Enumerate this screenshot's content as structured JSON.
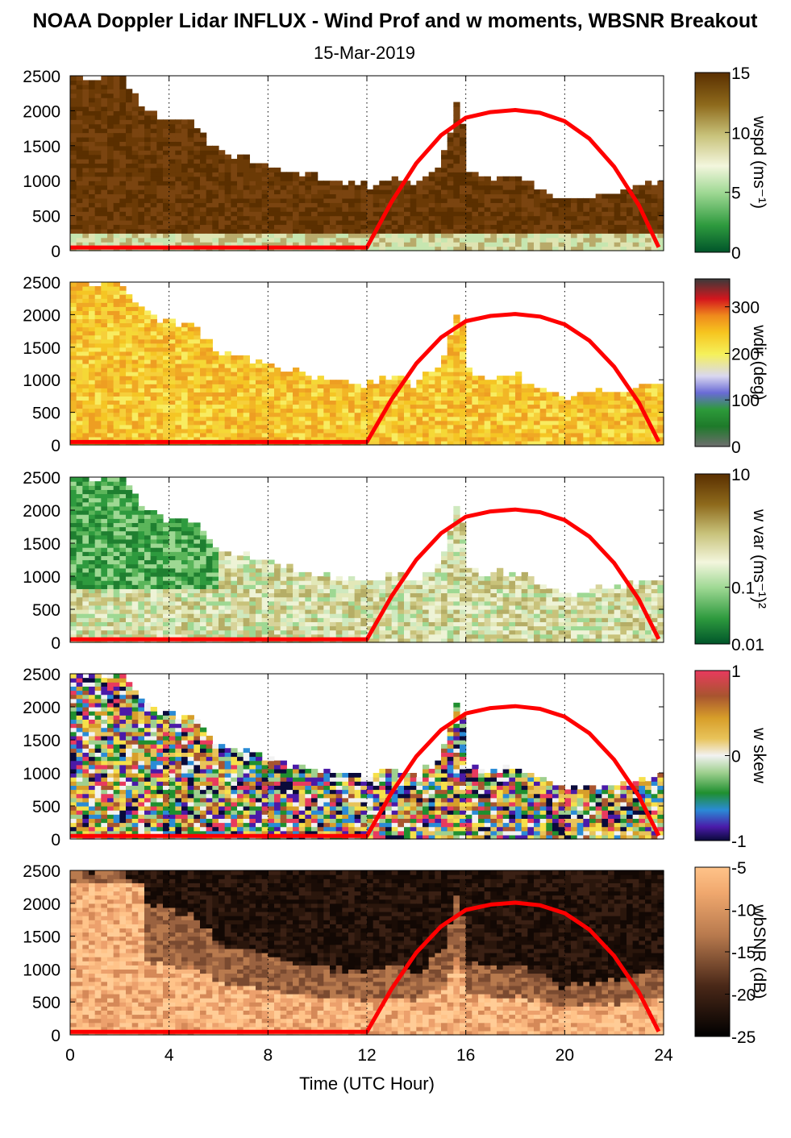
{
  "title": "NOAA Doppler Lidar INFLUX - Wind Prof and w moments, WBSNR Breakout",
  "subtitle": "15-Mar-2019",
  "xlabel": "Time (UTC Hour)",
  "colors": {
    "sun_curve": "#ff0000",
    "background": "#ffffff"
  },
  "chart_data": [
    {
      "type": "heatmap",
      "quantity": "wspd",
      "colorbar_label": "wspd (ms⁻¹)",
      "colorbar_ticks": [
        "15",
        "10",
        "5",
        "0"
      ],
      "clim": [
        0,
        15
      ],
      "xlim": [
        0,
        24
      ],
      "ylim": [
        0,
        2500
      ],
      "x_ticks": [
        "0",
        "4",
        "8",
        "12",
        "16",
        "20",
        "24"
      ],
      "y_ticks": [
        "0",
        "500",
        "1000",
        "1500",
        "2000",
        "2500"
      ],
      "grid": "vertical dotted at 4,8,12,16,20,24",
      "data_top_height_m": [
        [
          0,
          2500
        ],
        [
          1,
          2450
        ],
        [
          2,
          2500
        ],
        [
          3,
          2000
        ],
        [
          4,
          1850
        ],
        [
          5,
          1800
        ],
        [
          6,
          1400
        ],
        [
          8,
          1200
        ],
        [
          10,
          1000
        ],
        [
          12,
          900
        ],
        [
          13,
          1000
        ],
        [
          14,
          900
        ],
        [
          15,
          1200
        ],
        [
          15.8,
          2250
        ],
        [
          16,
          1100
        ],
        [
          17,
          1000
        ],
        [
          18,
          1050
        ],
        [
          20,
          700
        ],
        [
          22,
          800
        ],
        [
          23.8,
          950
        ]
      ]
    },
    {
      "type": "heatmap",
      "quantity": "wdir",
      "colorbar_label": "wdir (deg)",
      "colorbar_ticks": [
        "300",
        "200",
        "100",
        "0"
      ],
      "clim": [
        0,
        360
      ],
      "xlim": [
        0,
        24
      ],
      "ylim": [
        0,
        2500
      ],
      "x_ticks": [
        "0",
        "4",
        "8",
        "12",
        "16",
        "20",
        "24"
      ],
      "y_ticks": [
        "0",
        "500",
        "1000",
        "1500",
        "2000",
        "2500"
      ]
    },
    {
      "type": "heatmap",
      "quantity": "w var",
      "colorbar_label": "w var (ms⁻¹)²",
      "colorbar_ticks": [
        "10",
        "0.1",
        "0.01"
      ],
      "clim": [
        0.01,
        10
      ],
      "scale": "log",
      "xlim": [
        0,
        24
      ],
      "ylim": [
        0,
        2500
      ],
      "x_ticks": [
        "0",
        "4",
        "8",
        "12",
        "16",
        "20",
        "24"
      ],
      "y_ticks": [
        "0",
        "500",
        "1000",
        "1500",
        "2000",
        "2500"
      ]
    },
    {
      "type": "heatmap",
      "quantity": "w skew",
      "colorbar_label": "w skew",
      "colorbar_ticks": [
        "1",
        "0",
        "-1"
      ],
      "clim": [
        -1,
        1
      ],
      "xlim": [
        0,
        24
      ],
      "ylim": [
        0,
        2500
      ],
      "x_ticks": [
        "0",
        "4",
        "8",
        "12",
        "16",
        "20",
        "24"
      ],
      "y_ticks": [
        "0",
        "500",
        "1000",
        "1500",
        "2000",
        "2500"
      ]
    },
    {
      "type": "heatmap",
      "quantity": "wbSNR",
      "colorbar_label": "wbSNR (dB)",
      "colorbar_ticks": [
        "-5",
        "-10",
        "-15",
        "-20",
        "-25"
      ],
      "clim": [
        -25,
        -5
      ],
      "xlim": [
        0,
        24
      ],
      "ylim": [
        0,
        2500
      ],
      "x_ticks": [
        "0",
        "4",
        "8",
        "12",
        "16",
        "20",
        "24"
      ],
      "y_ticks": [
        "0",
        "500",
        "1000",
        "1500",
        "2000",
        "2500"
      ],
      "x_tick_labels_shown": true
    }
  ],
  "sun_curve": {
    "type": "line",
    "color": "#ff0000",
    "x": [
      0,
      12,
      13,
      14,
      15,
      16,
      17,
      18,
      19,
      20,
      21,
      22,
      23,
      23.8
    ],
    "y": [
      45,
      45,
      700,
      1250,
      1650,
      1900,
      1980,
      2010,
      1970,
      1850,
      1600,
      1200,
      650,
      50
    ]
  }
}
